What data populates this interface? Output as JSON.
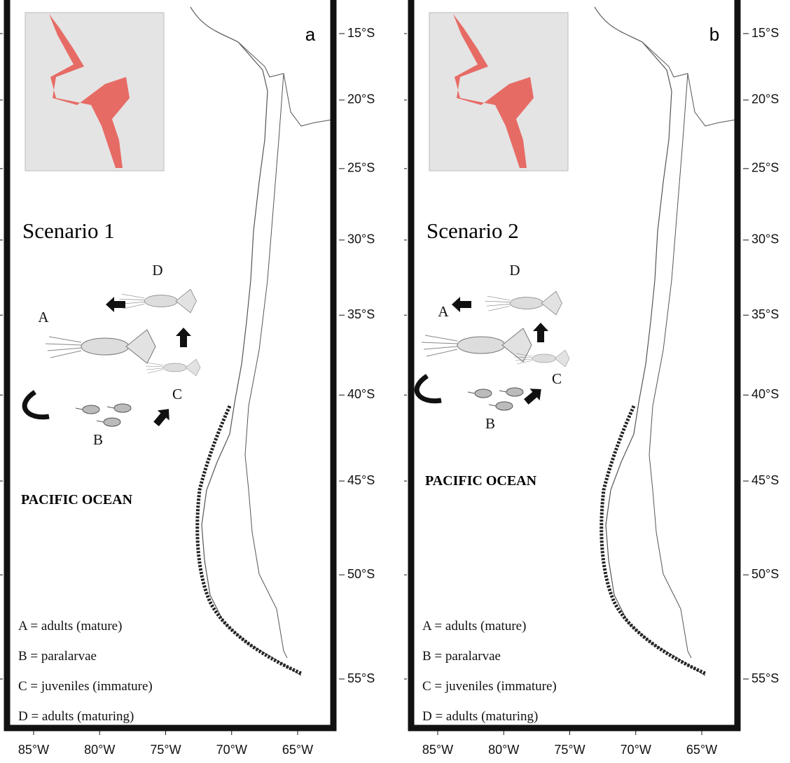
{
  "panels": [
    {
      "label": "a",
      "title": "Scenario 1",
      "ocean_label": "PACIFIC OCEAN",
      "stages": [
        "A",
        "B",
        "C",
        "D"
      ],
      "legend": [
        "A = adults (mature)",
        "B = paralarvae",
        "C = juveniles (immature)",
        "D = adults (maturing)"
      ]
    },
    {
      "label": "b",
      "title": "Scenario 2",
      "ocean_label": "PACIFIC OCEAN",
      "stages": [
        "A",
        "B",
        "C",
        "D"
      ],
      "legend": [
        "A = adults (mature)",
        "B = paralarvae",
        "C = juveniles (immature)",
        "D = adults (maturing)"
      ]
    }
  ],
  "lat_ticks": [
    {
      "value": 15,
      "label": "15°S"
    },
    {
      "value": 20,
      "label": "20°S"
    },
    {
      "value": 25,
      "label": "25°S"
    },
    {
      "value": 30,
      "label": "30°S"
    },
    {
      "value": 35,
      "label": "35°S"
    },
    {
      "value": 40,
      "label": "40°S"
    },
    {
      "value": 45,
      "label": "45°S"
    },
    {
      "value": 50,
      "label": "50°S"
    },
    {
      "value": 55,
      "label": "55°S"
    }
  ],
  "lon_ticks": [
    {
      "value": 85,
      "label": "85°W"
    },
    {
      "value": 80,
      "label": "80°W"
    },
    {
      "value": 75,
      "label": "75°W"
    },
    {
      "value": 70,
      "label": "70°W"
    },
    {
      "value": 65,
      "label": "65°W"
    }
  ]
}
